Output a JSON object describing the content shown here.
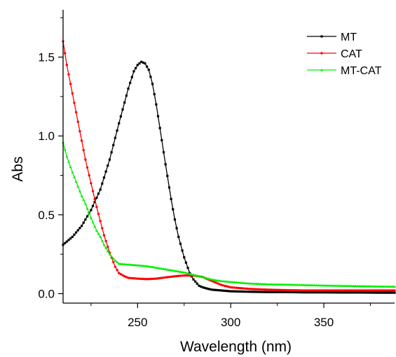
{
  "chart_data": {
    "type": "line",
    "xlabel": "Wavelength (nm)",
    "ylabel": "Abs",
    "xlim": [
      210,
      388
    ],
    "ylim": [
      -0.06,
      1.8
    ],
    "xticks": [
      250,
      300,
      350
    ],
    "yticks": [
      0.0,
      0.5,
      1.0,
      1.5
    ],
    "xtick_labels": [
      "250",
      "300",
      "350"
    ],
    "ytick_labels": [
      "0.0",
      "0.5",
      "1.0",
      "1.5"
    ],
    "legend": "top-right",
    "grid": false,
    "series": [
      {
        "name": "MT",
        "color": "#000000",
        "marker": "square",
        "x": [
          210,
          215,
          220,
          225,
          230,
          235,
          240,
          245,
          248,
          250,
          252,
          254,
          256,
          258,
          260,
          262,
          265,
          268,
          270,
          272,
          275,
          278,
          280,
          283,
          285,
          288,
          290,
          295,
          300,
          310,
          320,
          330,
          340,
          350,
          360,
          370,
          380,
          388
        ],
        "y": [
          0.31,
          0.36,
          0.43,
          0.53,
          0.66,
          0.85,
          1.08,
          1.3,
          1.41,
          1.45,
          1.47,
          1.46,
          1.42,
          1.33,
          1.2,
          1.05,
          0.82,
          0.6,
          0.47,
          0.36,
          0.23,
          0.13,
          0.09,
          0.05,
          0.04,
          0.03,
          0.025,
          0.02,
          0.015,
          0.012,
          0.01,
          0.01,
          0.008,
          0.008,
          0.007,
          0.007,
          0.006,
          0.006
        ]
      },
      {
        "name": "CAT",
        "color": "#ff0000",
        "marker": "circle",
        "x": [
          210,
          212,
          215,
          218,
          220,
          222,
          225,
          228,
          230,
          232,
          235,
          238,
          240,
          243,
          245,
          250,
          255,
          260,
          265,
          270,
          275,
          280,
          285,
          290,
          295,
          300,
          310,
          320,
          330,
          340,
          350,
          360,
          370,
          380,
          388
        ],
        "y": [
          1.6,
          1.45,
          1.27,
          1.09,
          0.97,
          0.85,
          0.7,
          0.55,
          0.46,
          0.37,
          0.26,
          0.17,
          0.13,
          0.11,
          0.1,
          0.095,
          0.092,
          0.095,
          0.103,
          0.11,
          0.115,
          0.115,
          0.105,
          0.08,
          0.055,
          0.04,
          0.03,
          0.025,
          0.022,
          0.02,
          0.02,
          0.02,
          0.02,
          0.02,
          0.02
        ]
      },
      {
        "name": "MT-CAT",
        "color": "#00ee00",
        "marker": "triangle",
        "x": [
          210,
          212,
          215,
          218,
          220,
          222,
          225,
          228,
          230,
          232,
          235,
          238,
          240,
          245,
          250,
          255,
          260,
          265,
          270,
          275,
          280,
          285,
          290,
          295,
          300,
          310,
          320,
          330,
          340,
          350,
          360,
          370,
          380,
          388
        ],
        "y": [
          0.96,
          0.87,
          0.77,
          0.68,
          0.62,
          0.57,
          0.48,
          0.4,
          0.36,
          0.31,
          0.25,
          0.21,
          0.19,
          0.185,
          0.18,
          0.175,
          0.165,
          0.155,
          0.145,
          0.135,
          0.12,
          0.105,
          0.09,
          0.08,
          0.075,
          0.065,
          0.06,
          0.058,
          0.055,
          0.052,
          0.05,
          0.048,
          0.046,
          0.045
        ]
      }
    ]
  }
}
